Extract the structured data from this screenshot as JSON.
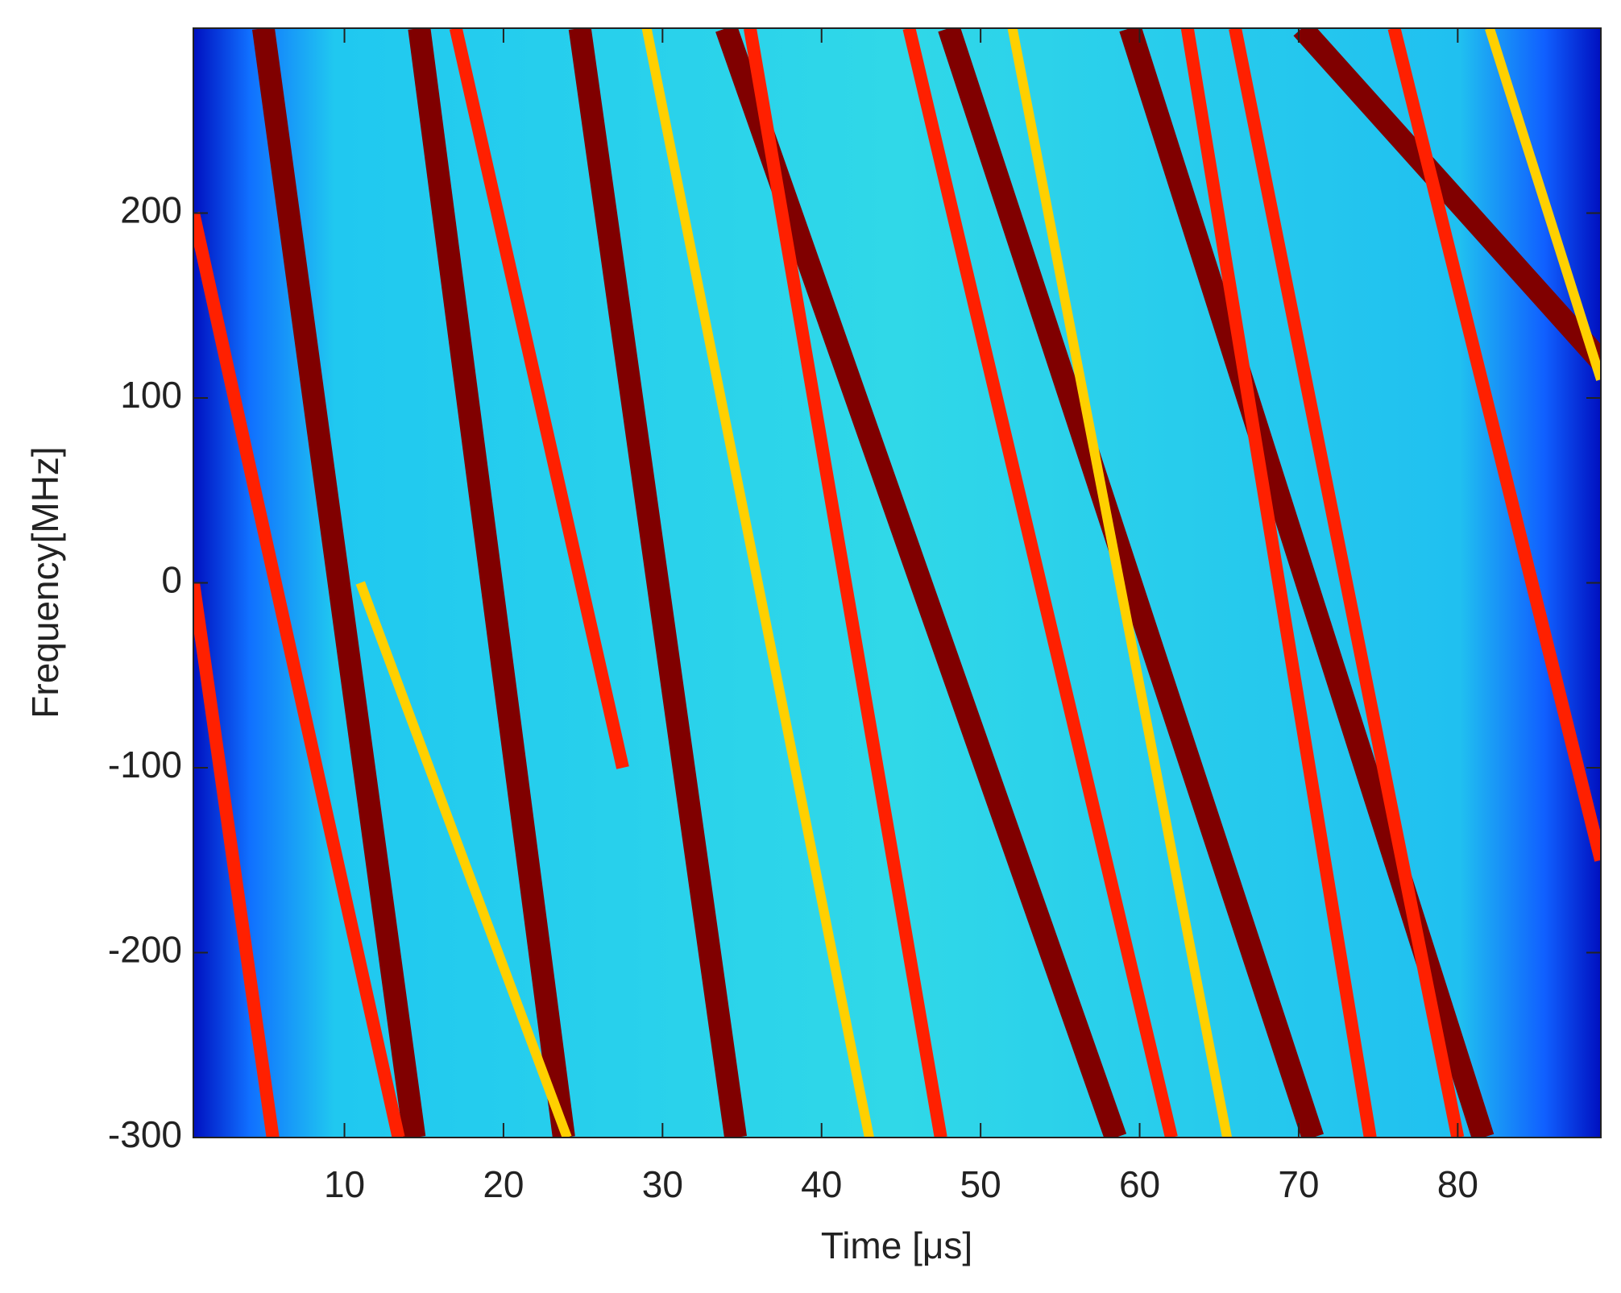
{
  "chart_data": {
    "type": "line",
    "x_label": "Time [μs]",
    "y_label": "Frequency[MHz]",
    "xlim": [
      0.5,
      89
    ],
    "ylim": [
      -300,
      300
    ],
    "xticks": [
      10,
      20,
      30,
      40,
      50,
      60,
      70,
      80
    ],
    "yticks": [
      -300,
      -200,
      -100,
      0,
      100,
      200
    ],
    "series": [
      {
        "color": "#800000",
        "x": [
          4.9,
          14.4
        ],
        "y": [
          300,
          -300
        ]
      },
      {
        "color": "#800000",
        "x": [
          14.7,
          23.8
        ],
        "y": [
          300,
          -300
        ]
      },
      {
        "color": "#800000",
        "x": [
          24.8,
          34.6
        ],
        "y": [
          300,
          -300
        ]
      },
      {
        "color": "#800000",
        "x": [
          34.0,
          58.5
        ],
        "y": [
          300,
          -300
        ]
      },
      {
        "color": "#800000",
        "x": [
          48,
          70.9
        ],
        "y": [
          300,
          -300
        ]
      },
      {
        "color": "#800000",
        "x": [
          59.4,
          81.6
        ],
        "y": [
          300,
          -300
        ]
      },
      {
        "color": "#800000",
        "x": [
          70.2,
          89
        ],
        "y": [
          300,
          120
        ]
      },
      {
        "color": "#ff2000",
        "x": [
          0.5,
          13.4
        ],
        "y": [
          200,
          -300
        ]
      },
      {
        "color": "#ff2000",
        "x": [
          0.5,
          5.5
        ],
        "y": [
          0,
          -300
        ]
      },
      {
        "color": "#ff2000",
        "x": [
          17,
          27.5
        ],
        "y": [
          300,
          -100
        ]
      },
      {
        "color": "#ff2000",
        "x": [
          35.5,
          47.5
        ],
        "y": [
          300,
          -300
        ]
      },
      {
        "color": "#ff2000",
        "x": [
          45.5,
          62
        ],
        "y": [
          300,
          -300
        ]
      },
      {
        "color": "#ff2000",
        "x": [
          63,
          74.5
        ],
        "y": [
          300,
          -300
        ]
      },
      {
        "color": "#ff2000",
        "x": [
          66,
          80
        ],
        "y": [
          300,
          -300
        ]
      },
      {
        "color": "#ff2000",
        "x": [
          76,
          89
        ],
        "y": [
          300,
          -150
        ]
      },
      {
        "color": "#ffd000",
        "x": [
          11,
          24
        ],
        "y": [
          0,
          -300
        ]
      },
      {
        "color": "#ffd000",
        "x": [
          29,
          43
        ],
        "y": [
          300,
          -300
        ]
      },
      {
        "color": "#ffd000",
        "x": [
          52,
          65.5
        ],
        "y": [
          300,
          -300
        ]
      },
      {
        "color": "#ffd000",
        "x": [
          82,
          89
        ],
        "y": [
          300,
          110
        ]
      }
    ]
  }
}
